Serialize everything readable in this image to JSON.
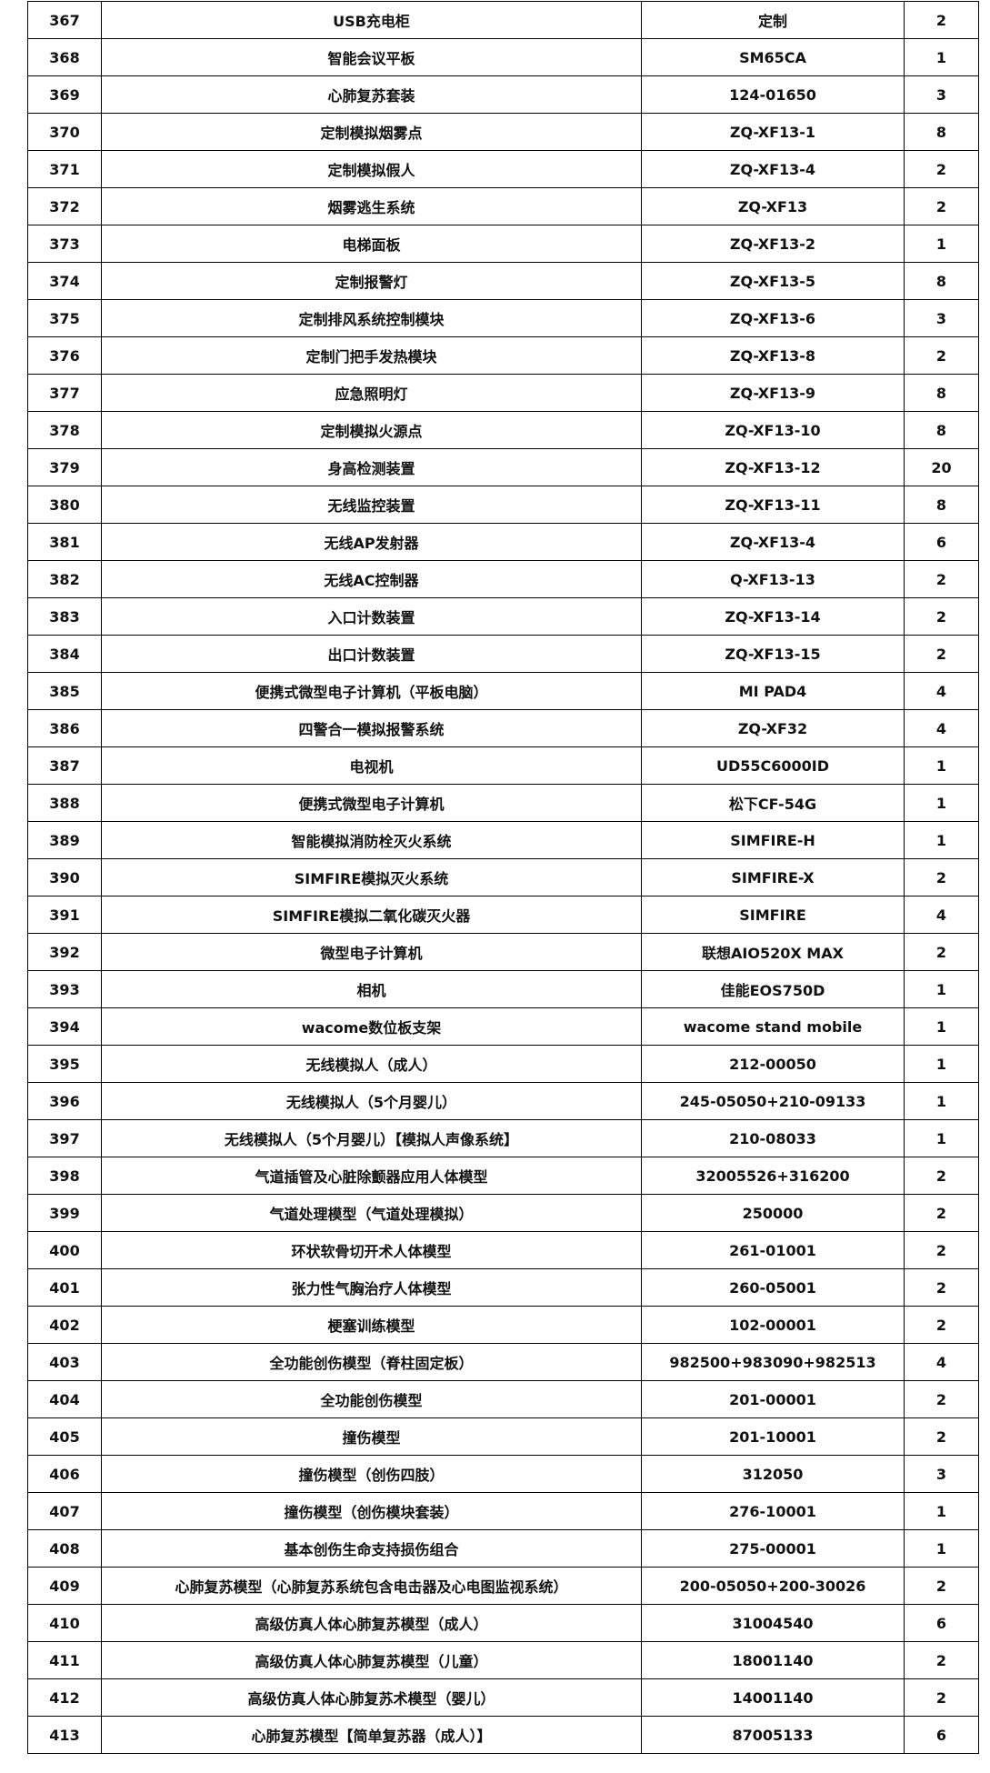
{
  "rows": [
    [
      "367",
      "USB充电柜",
      "定制",
      "2"
    ],
    [
      "368",
      "智能会议平板",
      "SM65CA",
      "1"
    ],
    [
      "369",
      "心肺复苏套装",
      "124-01650",
      "3"
    ],
    [
      "370",
      "定制模拟烟雾点",
      "ZQ-XF13-1",
      "8"
    ],
    [
      "371",
      "定制模拟假人",
      "ZQ-XF13-4",
      "2"
    ],
    [
      "372",
      "烟雾逃生系统",
      "ZQ-XF13",
      "2"
    ],
    [
      "373",
      "电梯面板",
      "ZQ-XF13-2",
      "1"
    ],
    [
      "374",
      "定制报警灯",
      "ZQ-XF13-5",
      "8"
    ],
    [
      "375",
      "定制排风系统控制模块",
      "ZQ-XF13-6",
      "3"
    ],
    [
      "376",
      "定制门把手发热模块",
      "ZQ-XF13-8",
      "2"
    ],
    [
      "377",
      "应急照明灯",
      "ZQ-XF13-9",
      "8"
    ],
    [
      "378",
      "定制模拟火源点",
      "ZQ-XF13-10",
      "8"
    ],
    [
      "379",
      "身高检测装置",
      "ZQ-XF13-12",
      "20"
    ],
    [
      "380",
      "无线监控装置",
      "ZQ-XF13-11",
      "8"
    ],
    [
      "381",
      "无线AP发射器",
      "ZQ-XF13-4",
      "6"
    ],
    [
      "382",
      "无线AC控制器",
      "Q-XF13-13",
      "2"
    ],
    [
      "383",
      "入口计数装置",
      "ZQ-XF13-14",
      "2"
    ],
    [
      "384",
      "出口计数装置",
      "ZQ-XF13-15",
      "2"
    ],
    [
      "385",
      "便携式微型电子计算机（平板电脑）",
      "MI  PAD4",
      "4"
    ],
    [
      "386",
      "四警合一模拟报警系统",
      "ZQ-XF32",
      "4"
    ],
    [
      "387",
      "电视机",
      "UD55C6000ID",
      "1"
    ],
    [
      "388",
      "便携式微型电子计算机",
      "松下CF-54G",
      "1"
    ],
    [
      "389",
      "智能模拟消防栓灭火系统",
      "SIMFIRE-H",
      "1"
    ],
    [
      "390",
      "SIMFIRE模拟灭火系统",
      "SIMFIRE-X",
      "2"
    ],
    [
      "391",
      "SIMFIRE模拟二氧化碳灭火器",
      "SIMFIRE",
      "4"
    ],
    [
      "392",
      "微型电子计算机",
      "联想AIO520X MAX",
      "2"
    ],
    [
      "393",
      "相机",
      "佳能EOS750D",
      "1"
    ],
    [
      "394",
      "wacome数位板支架",
      "wacome stand mobile",
      "1"
    ],
    [
      "395",
      "无线模拟人（成人）",
      "212-00050",
      "1"
    ],
    [
      "396",
      "无线模拟人（5个月婴儿）",
      "245-05050+210-09133",
      "1"
    ],
    [
      "397",
      "无线模拟人（5个月婴儿）【模拟人声像系统】",
      "210-08033",
      "1"
    ],
    [
      "398",
      "气道插管及心脏除颤器应用人体模型",
      "32005526+316200",
      "2"
    ],
    [
      "399",
      "气道处理模型（气道处理模拟）",
      "250000",
      "2"
    ],
    [
      "400",
      "环状软骨切开术人体模型",
      "261-01001",
      "2"
    ],
    [
      "401",
      "张力性气胸治疗人体模型",
      "260-05001",
      "2"
    ],
    [
      "402",
      "梗塞训练模型",
      "102-00001",
      "2"
    ],
    [
      "403",
      "全功能创伤模型（脊柱固定板）",
      "982500+983090+982513",
      "4"
    ],
    [
      "404",
      "全功能创伤模型",
      "201-00001",
      "2"
    ],
    [
      "405",
      "撞伤模型",
      "201-10001",
      "2"
    ],
    [
      "406",
      "撞伤模型（创伤四肢）",
      "312050",
      "3"
    ],
    [
      "407",
      "撞伤模型（创伤模块套装）",
      "276-10001",
      "1"
    ],
    [
      "408",
      "基本创伤生命支持损伤组合",
      "275-00001",
      "1"
    ],
    [
      "409",
      "心肺复苏模型（心肺复苏系统包含电击器及心电图监视系统）",
      "200-05050+200-30026",
      "2"
    ],
    [
      "410",
      "高级仿真人体心肺复苏模型（成人）",
      "31004540",
      "6"
    ],
    [
      "411",
      "高级仿真人体心肺复苏模型（儿童）",
      "18001140",
      "2"
    ],
    [
      "412",
      "高级仿真人体心肺复苏术模型（婴儿）",
      "14001140",
      "2"
    ],
    [
      "413",
      "心肺复苏模型【简单复苏器（成人）】",
      "87005133",
      "6"
    ]
  ]
}
